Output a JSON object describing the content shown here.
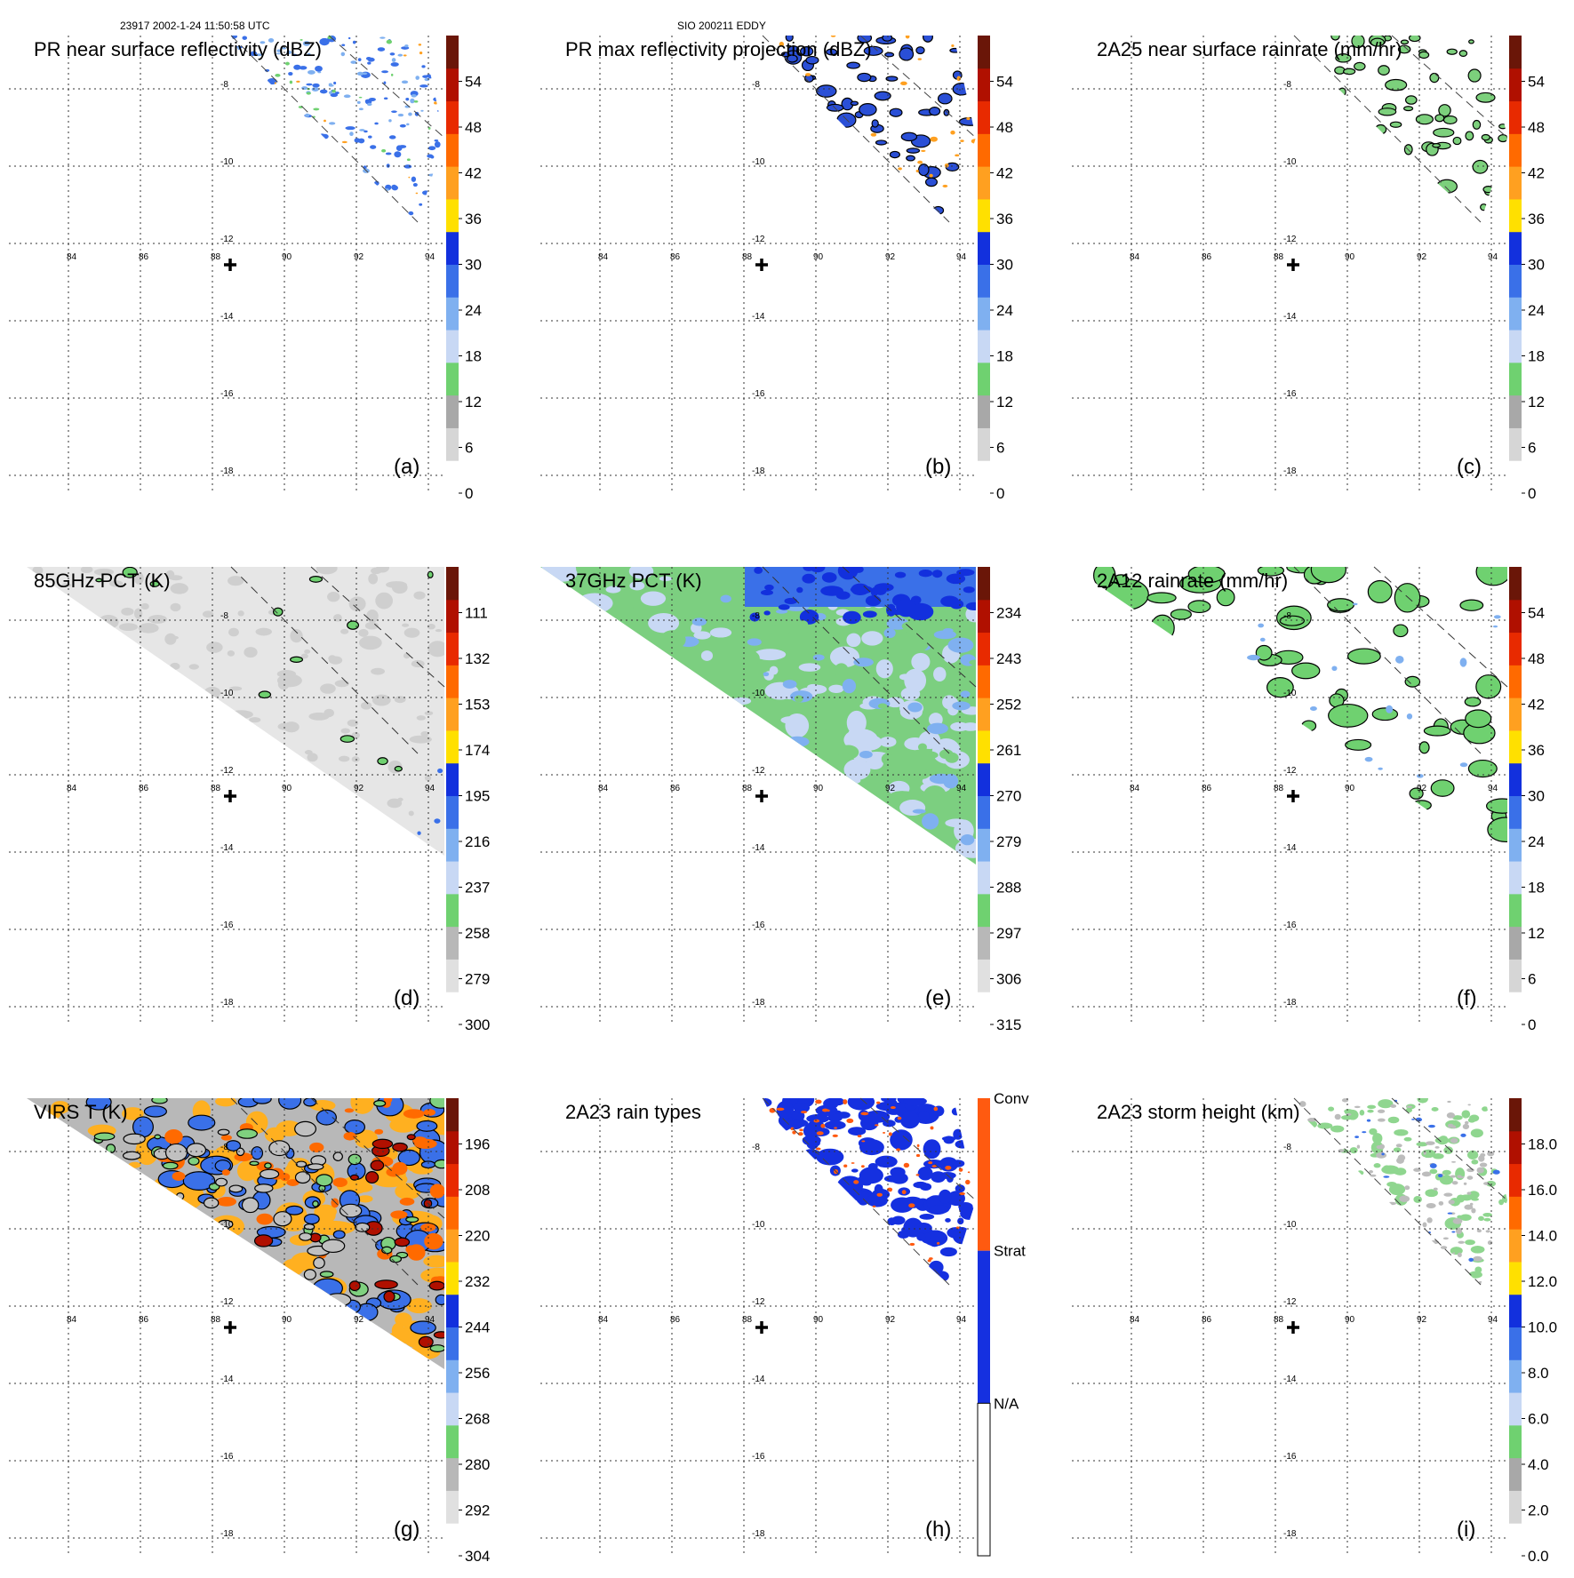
{
  "header": {
    "left": "23917 2002-1-24 11:50:58 UTC",
    "center": "SIO 200211 EDDY"
  },
  "lon_labels": [
    "84",
    "86",
    "88",
    "90",
    "92",
    "94"
  ],
  "lat_labels": [
    "-8",
    "-10",
    "-12",
    "-14",
    "-16",
    "-18"
  ],
  "panels": [
    {
      "title": "PR near surface reflectivity (dBZ)",
      "letter": "(a)",
      "field": "swath-pr",
      "fill": "#3a6fe0",
      "outline": false,
      "colorbar": [
        "54",
        "48",
        "42",
        "36",
        "30",
        "24",
        "18",
        "12",
        "6",
        "0"
      ]
    },
    {
      "title": "PR max reflectivity projection (dBZ)",
      "letter": "(b)",
      "field": "swath-pr",
      "fill": "#2a4fd6",
      "outline": true,
      "colorbar": [
        "54",
        "48",
        "42",
        "36",
        "30",
        "24",
        "18",
        "12",
        "6",
        "0"
      ]
    },
    {
      "title": "2A25 near surface rainrate (mm/hr)",
      "letter": "(c)",
      "field": "swath-pr",
      "fill": "#7cd07c",
      "outline": true,
      "colorbar": [
        "54",
        "48",
        "42",
        "36",
        "30",
        "24",
        "18",
        "12",
        "6",
        "0"
      ]
    },
    {
      "title": "85GHz PCT (K)",
      "letter": "(d)",
      "field": "swath-tmi-gray",
      "fill": "#d8d8d8",
      "outline": false,
      "colorbar": [
        "111",
        "132",
        "153",
        "174",
        "195",
        "216",
        "237",
        "258",
        "279",
        "300"
      ]
    },
    {
      "title": "37GHz PCT (K)",
      "letter": "(e)",
      "field": "swath-tmi-green",
      "fill": "#7ccf80",
      "outline": false,
      "colorbar": [
        "234",
        "243",
        "252",
        "261",
        "270",
        "279",
        "288",
        "297",
        "306",
        "315"
      ]
    },
    {
      "title": "2A12 rainrate (mm/hr)",
      "letter": "(f)",
      "field": "swath-tmi-rain",
      "fill": "#7cd07c",
      "outline": true,
      "colorbar": [
        "54",
        "48",
        "42",
        "36",
        "30",
        "24",
        "18",
        "12",
        "6",
        "0"
      ]
    },
    {
      "title": "VIRS T (K)",
      "letter": "(g)",
      "field": "swath-virs",
      "fill": "#f0a020",
      "outline": true,
      "colorbar": [
        "196",
        "208",
        "220",
        "232",
        "244",
        "256",
        "268",
        "280",
        "292",
        "304"
      ]
    },
    {
      "title": "2A23 rain types",
      "letter": "(h)",
      "field": "swath-pr",
      "fill": "#1530e0",
      "outline": false,
      "colorbar": [
        "Conv",
        "Strat",
        "N/A"
      ]
    },
    {
      "title": "2A23 storm height (km)",
      "letter": "(i)",
      "field": "swath-pr",
      "fill": "#9fd99f",
      "outline": false,
      "colorbar": [
        "18.0",
        "16.0",
        "14.0",
        "12.0",
        "10.0",
        "8.0",
        "6.0",
        "4.0",
        "2.0",
        "0.0"
      ]
    }
  ],
  "colors": {
    "scale": [
      "#ffffff",
      "#d6d6d6",
      "#a8a8a8",
      "#6fd170",
      "#c8d8f4",
      "#7fb0f0",
      "#3a70e8",
      "#1230dd",
      "#ffe000",
      "#ffa020",
      "#ff6a00",
      "#e82a00",
      "#b01000",
      "#6a1608"
    ],
    "pct": [
      "#ffffff",
      "#e0e0e0",
      "#b8b8b8",
      "#6fd170",
      "#c8d8f4",
      "#7fb0f0",
      "#3a70e8",
      "#1230dd",
      "#ffe000",
      "#ffa020",
      "#ff6a00",
      "#e82a00",
      "#b01000",
      "#6a1608"
    ]
  }
}
